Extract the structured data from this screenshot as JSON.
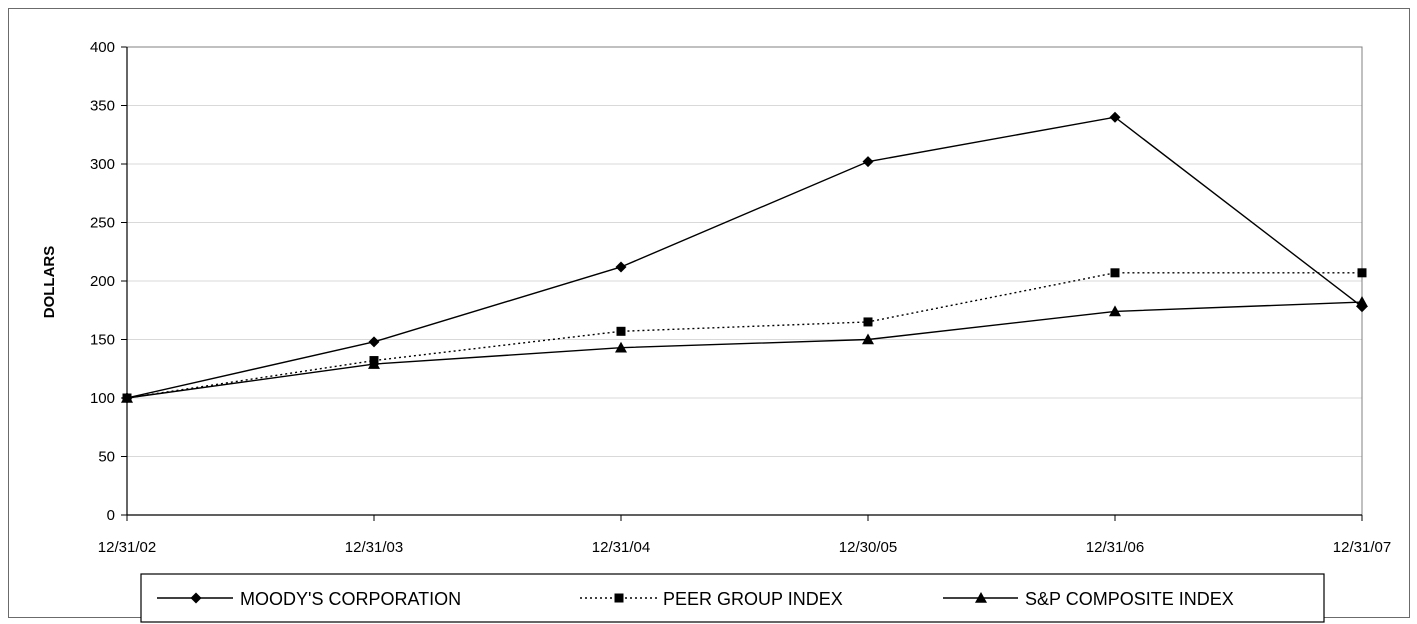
{
  "chart_data": {
    "type": "line",
    "title": "",
    "xlabel": "",
    "ylabel": "DOLLARS",
    "categories": [
      "12/31/02",
      "12/31/03",
      "12/31/04",
      "12/30/05",
      "12/31/06",
      "12/31/07"
    ],
    "ylim": [
      0,
      400
    ],
    "yticks": [
      0,
      50,
      100,
      150,
      200,
      250,
      300,
      350,
      400
    ],
    "grid": "horizontal",
    "legend_position": "bottom",
    "series": [
      {
        "name": "MOODY'S CORPORATION",
        "marker": "diamond",
        "line_style": "solid",
        "values": [
          100,
          148,
          212,
          302,
          340,
          178
        ]
      },
      {
        "name": "PEER GROUP INDEX",
        "marker": "square",
        "line_style": "dotted",
        "values": [
          100,
          132,
          157,
          165,
          207,
          207
        ]
      },
      {
        "name": "S&P COMPOSITE INDEX",
        "marker": "triangle",
        "line_style": "solid",
        "values": [
          100,
          129,
          143,
          150,
          174,
          182
        ]
      }
    ],
    "colors": {
      "line": "#000000",
      "grid": "#d9d9d9",
      "axis": "#000000"
    }
  }
}
